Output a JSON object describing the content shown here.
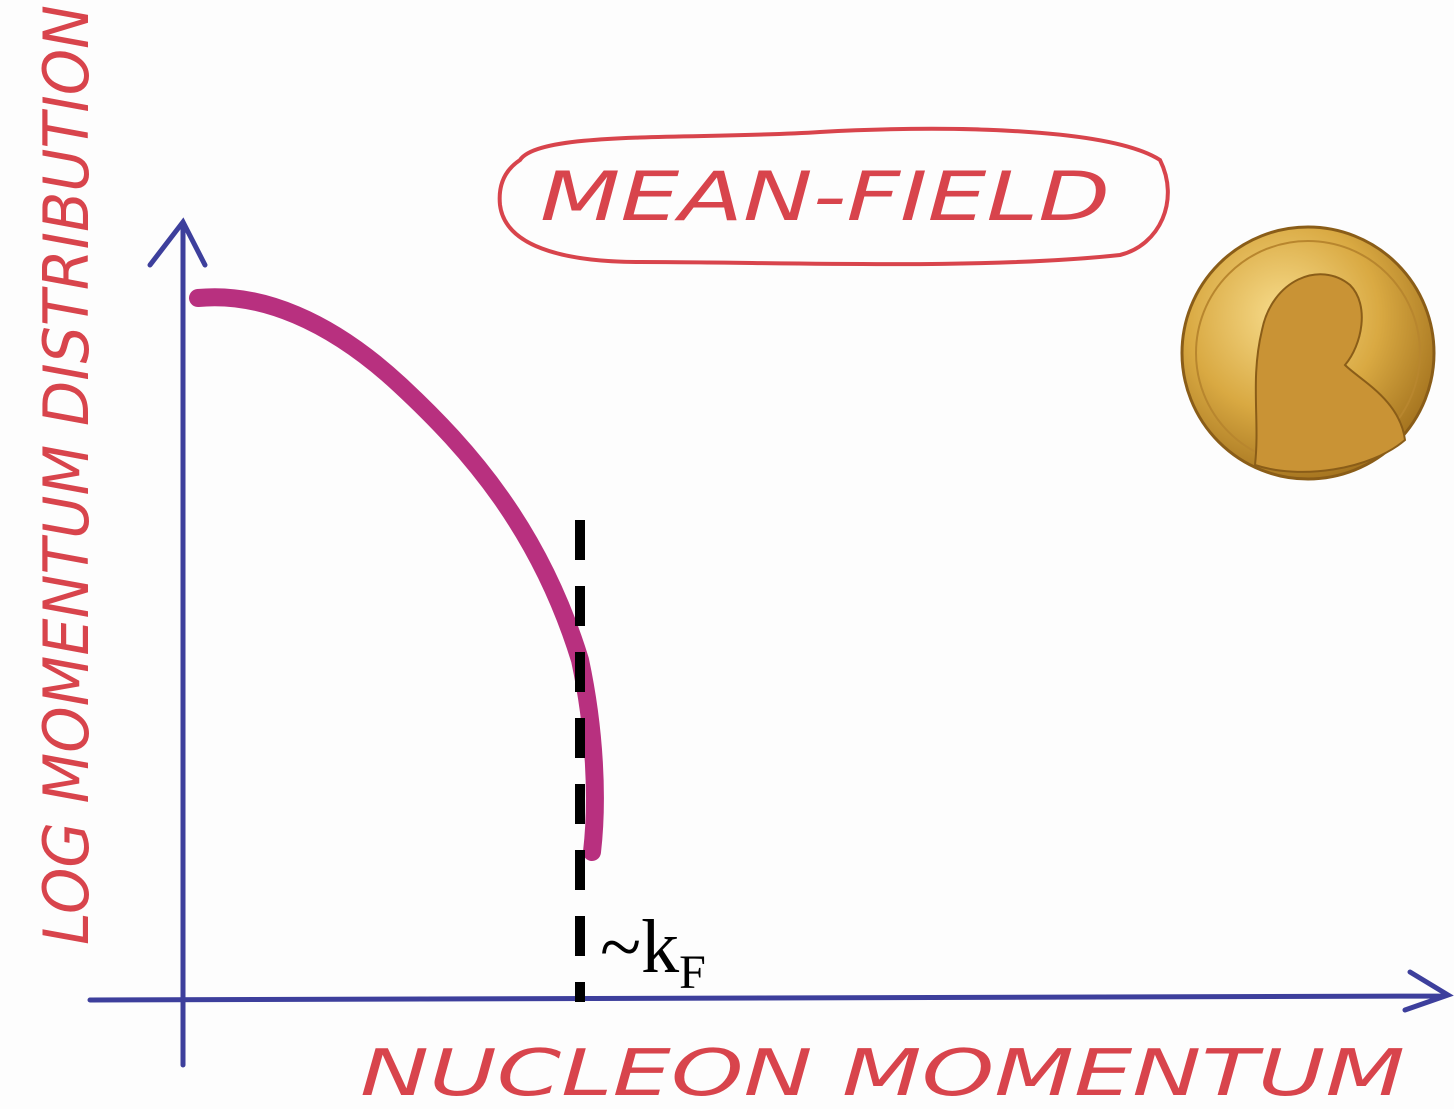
{
  "title": "MEAN-FIELD",
  "y_axis_label": "LOG MOMENTUM DISTRIBUTION",
  "x_axis_label": "NUCLEON MOMENTUM",
  "marker": {
    "symbol": "~k",
    "subscript": "F"
  }
}
